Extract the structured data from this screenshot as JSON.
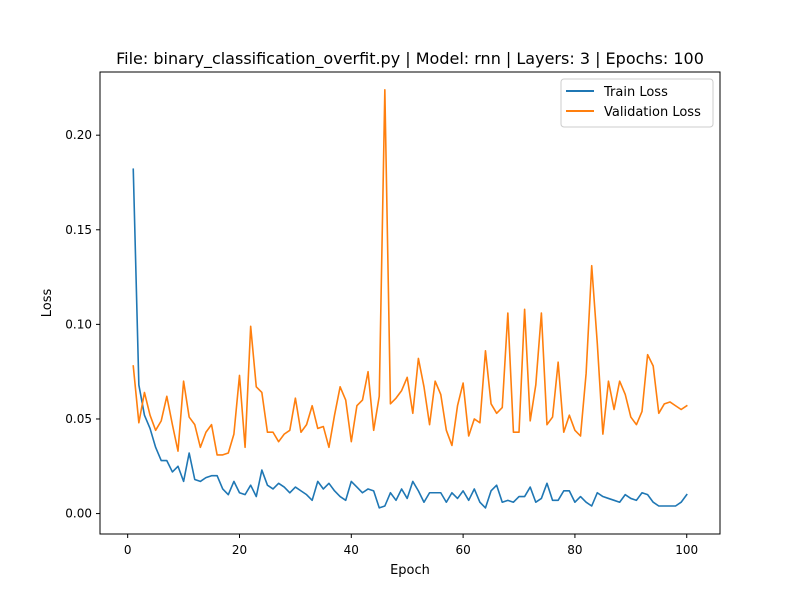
{
  "chart_data": {
    "type": "line",
    "title": "File: binary_classification_overfit.py | Model: rnn | Layers: 3 | Epochs: 100",
    "xlabel": "Epoch",
    "ylabel": "Loss",
    "xlim": [
      -4.95,
      105.95
    ],
    "ylim": [
      -0.0108,
      0.2334
    ],
    "xticks": [
      0,
      20,
      40,
      60,
      80,
      100
    ],
    "xtick_labels": [
      "0",
      "20",
      "40",
      "60",
      "80",
      "100"
    ],
    "yticks": [
      0.0,
      0.05,
      0.1,
      0.15,
      0.2
    ],
    "ytick_labels": [
      "0.00",
      "0.05",
      "0.10",
      "0.15",
      "0.20"
    ],
    "grid": false,
    "legend_position": "top-right",
    "x": [
      1,
      2,
      3,
      4,
      5,
      6,
      7,
      8,
      9,
      10,
      11,
      12,
      13,
      14,
      15,
      16,
      17,
      18,
      19,
      20,
      21,
      22,
      23,
      24,
      25,
      26,
      27,
      28,
      29,
      30,
      31,
      32,
      33,
      34,
      35,
      36,
      37,
      38,
      39,
      40,
      41,
      42,
      43,
      44,
      45,
      46,
      47,
      48,
      49,
      50,
      51,
      52,
      53,
      54,
      55,
      56,
      57,
      58,
      59,
      60,
      61,
      62,
      63,
      64,
      65,
      66,
      67,
      68,
      69,
      70,
      71,
      72,
      73,
      74,
      75,
      76,
      77,
      78,
      79,
      80,
      81,
      82,
      83,
      84,
      85,
      86,
      87,
      88,
      89,
      90,
      91,
      92,
      93,
      94,
      95,
      96,
      97,
      98,
      99,
      100
    ],
    "series": [
      {
        "name": "Train Loss",
        "color": "#1f77b4",
        "values": [
          0.182,
          0.068,
          0.052,
          0.045,
          0.035,
          0.028,
          0.028,
          0.022,
          0.025,
          0.017,
          0.032,
          0.018,
          0.017,
          0.019,
          0.02,
          0.02,
          0.013,
          0.01,
          0.017,
          0.011,
          0.01,
          0.015,
          0.009,
          0.023,
          0.015,
          0.013,
          0.016,
          0.014,
          0.011,
          0.014,
          0.012,
          0.01,
          0.007,
          0.017,
          0.013,
          0.016,
          0.012,
          0.009,
          0.007,
          0.017,
          0.014,
          0.011,
          0.013,
          0.012,
          0.003,
          0.004,
          0.011,
          0.007,
          0.013,
          0.008,
          0.017,
          0.012,
          0.006,
          0.011,
          0.011,
          0.011,
          0.006,
          0.011,
          0.008,
          0.012,
          0.007,
          0.013,
          0.006,
          0.003,
          0.012,
          0.015,
          0.006,
          0.007,
          0.006,
          0.009,
          0.009,
          0.014,
          0.006,
          0.008,
          0.016,
          0.007,
          0.007,
          0.012,
          0.012,
          0.006,
          0.009,
          0.006,
          0.004,
          0.011,
          0.009,
          0.008,
          0.007,
          0.006,
          0.01,
          0.008,
          0.007,
          0.011,
          0.01,
          0.006,
          0.004,
          0.004,
          0.004,
          0.004,
          0.006,
          0.01
        ]
      },
      {
        "name": "Validation Loss",
        "color": "#ff7f0e",
        "values": [
          0.078,
          0.048,
          0.064,
          0.052,
          0.044,
          0.049,
          0.062,
          0.047,
          0.033,
          0.07,
          0.051,
          0.047,
          0.035,
          0.043,
          0.047,
          0.031,
          0.031,
          0.032,
          0.042,
          0.073,
          0.035,
          0.099,
          0.067,
          0.064,
          0.043,
          0.043,
          0.038,
          0.042,
          0.044,
          0.061,
          0.043,
          0.047,
          0.057,
          0.045,
          0.046,
          0.035,
          0.052,
          0.067,
          0.06,
          0.038,
          0.057,
          0.06,
          0.075,
          0.044,
          0.062,
          0.224,
          0.058,
          0.061,
          0.065,
          0.072,
          0.053,
          0.082,
          0.067,
          0.047,
          0.07,
          0.063,
          0.044,
          0.036,
          0.057,
          0.069,
          0.041,
          0.05,
          0.048,
          0.086,
          0.058,
          0.053,
          0.056,
          0.106,
          0.043,
          0.043,
          0.108,
          0.049,
          0.068,
          0.106,
          0.047,
          0.051,
          0.08,
          0.043,
          0.052,
          0.044,
          0.041,
          0.074,
          0.131,
          0.09,
          0.042,
          0.07,
          0.055,
          0.07,
          0.063,
          0.051,
          0.047,
          0.054,
          0.084,
          0.078,
          0.053,
          0.058,
          0.059,
          0.057,
          0.055,
          0.057
        ]
      }
    ]
  }
}
